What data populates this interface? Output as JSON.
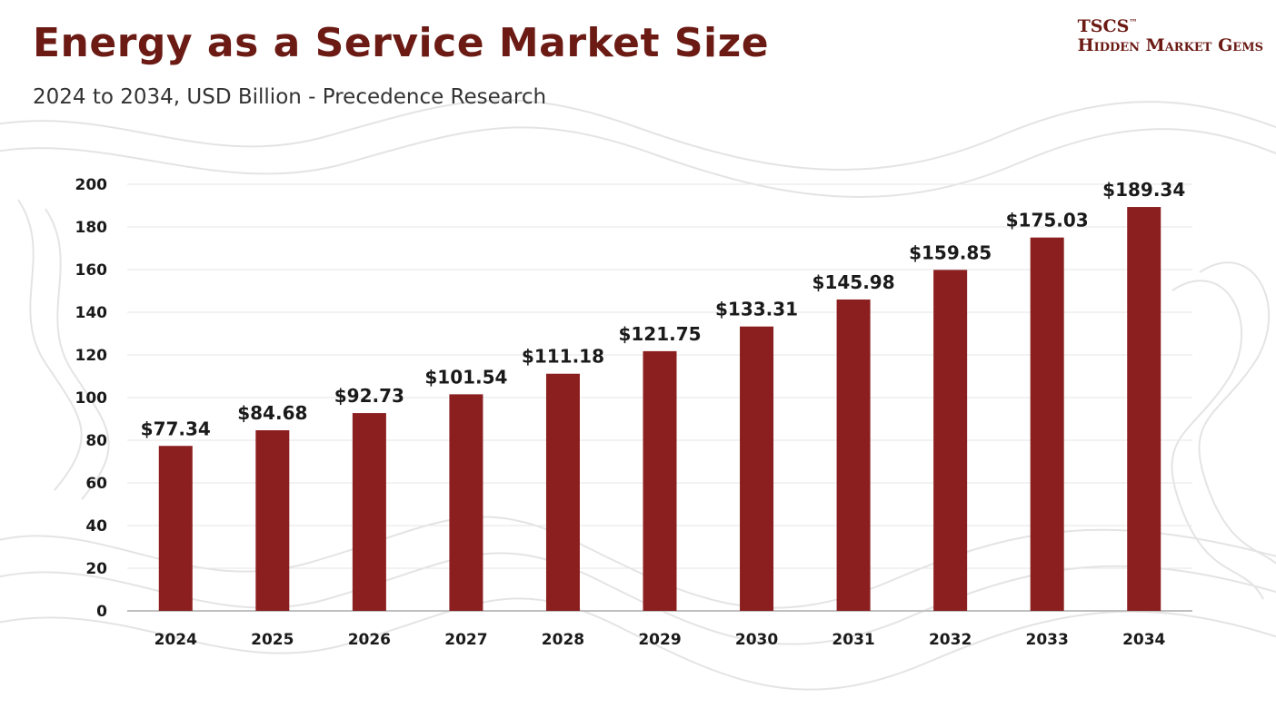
{
  "header": {
    "title": "Energy as a Service Market Size",
    "subtitle": "2024 to 2034, USD Billion - Precedence Research"
  },
  "brand": {
    "line1": "TSCS",
    "line1_mark": "™",
    "line2": "Hidden Market Gems"
  },
  "colors": {
    "bar": "#8b1e1e",
    "title": "#6b1a14",
    "grid": "#e6e6e6",
    "axis": "#bfbfbf",
    "background_lines": "#e4e4e4"
  },
  "chart_data": {
    "type": "bar",
    "title": "Energy as a Service Market Size",
    "subtitle": "2024 to 2034, USD Billion - Precedence Research",
    "xlabel": "",
    "ylabel": "",
    "categories": [
      "2024",
      "2025",
      "2026",
      "2027",
      "2028",
      "2029",
      "2030",
      "2031",
      "2032",
      "2033",
      "2034"
    ],
    "values": [
      77.34,
      84.68,
      92.73,
      101.54,
      111.18,
      121.75,
      133.31,
      145.98,
      159.85,
      175.03,
      189.34
    ],
    "data_labels": [
      "$77.34",
      "$84.68",
      "$92.73",
      "$101.54",
      "$111.18",
      "$121.75",
      "$133.31",
      "$145.98",
      "$159.85",
      "$175.03",
      "$189.34"
    ],
    "ylim": [
      0,
      200
    ],
    "yticks": [
      0,
      20,
      40,
      60,
      80,
      100,
      120,
      140,
      160,
      180,
      200
    ],
    "grid": true,
    "legend": "none"
  }
}
